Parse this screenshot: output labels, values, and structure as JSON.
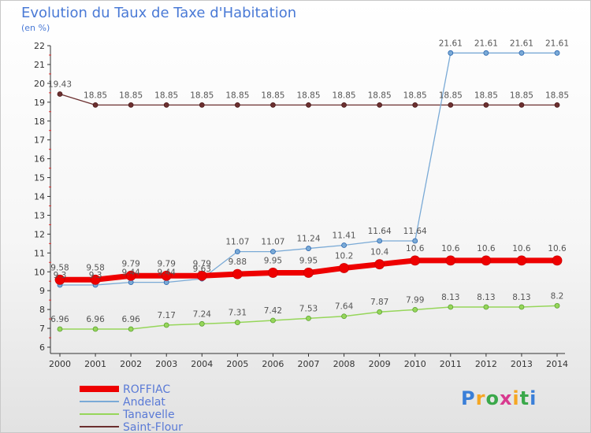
{
  "header": {
    "title": "Evolution du Taux de Taxe d'Habitation",
    "unit": "(en %)"
  },
  "brand": {
    "logo_letters": [
      "P",
      "r",
      "o",
      "x",
      "i",
      "t",
      "i"
    ],
    "logo_colors": [
      "#3a7fd8",
      "#f5a623",
      "#3aa84a",
      "#d83a8f",
      "#f5a623",
      "#3aa84a",
      "#3a7fd8"
    ]
  },
  "chart_data": {
    "type": "line",
    "x": [
      "2000",
      "2001",
      "2002",
      "2003",
      "2004",
      "2005",
      "2006",
      "2007",
      "2008",
      "2009",
      "2010",
      "2011",
      "2012",
      "2013",
      "2014"
    ],
    "ylim": [
      6,
      22
    ],
    "yticks": [
      6,
      7,
      8,
      9,
      10,
      11,
      12,
      13,
      14,
      15,
      16,
      17,
      18,
      19,
      20,
      21,
      22
    ],
    "legend_position": "bottom-left",
    "series": [
      {
        "name": "Saint-Flour",
        "color": "#6b2f2f",
        "line_width": 1.3,
        "point_radius": 3,
        "values": [
          19.43,
          18.85,
          18.85,
          18.85,
          18.85,
          18.85,
          18.85,
          18.85,
          18.85,
          18.85,
          18.85,
          18.85,
          18.85,
          18.85,
          18.85
        ],
        "labels": [
          "19.43",
          "18.85",
          "18.85",
          "18.85",
          "18.85",
          "18.85",
          "18.85",
          "18.85",
          "18.85",
          "18.85",
          "18.85",
          "18.85",
          "18.85",
          "18.85",
          "18.85"
        ]
      },
      {
        "name": "Tanavelle",
        "color": "#96d65a",
        "line_width": 1.5,
        "point_radius": 3,
        "values": [
          6.96,
          6.96,
          6.96,
          7.17,
          7.24,
          7.31,
          7.42,
          7.53,
          7.64,
          7.87,
          7.99,
          8.13,
          8.13,
          8.13,
          8.2
        ],
        "labels": [
          "6.96",
          "6.96",
          "6.96",
          "7.17",
          "7.24",
          "7.31",
          "7.42",
          "7.53",
          "7.64",
          "7.87",
          "7.99",
          "8.13",
          "8.13",
          "8.13",
          "8.2"
        ]
      },
      {
        "name": "Andelat",
        "color": "#7aaad6",
        "line_width": 1.3,
        "point_radius": 3,
        "values": [
          9.3,
          9.3,
          9.44,
          9.44,
          9.63,
          11.07,
          11.07,
          11.24,
          11.41,
          11.64,
          11.64,
          21.61,
          21.61,
          21.61,
          21.61
        ],
        "labels": [
          "9.3",
          "9.3",
          "9.44",
          "9.44",
          "9.63",
          "11.07",
          "11.07",
          "11.24",
          "11.41",
          "11.64",
          "11.64",
          "21.61",
          "21.61",
          "21.61",
          "21.61"
        ]
      },
      {
        "name": "ROFFIAC",
        "color": "#ee0000",
        "line_width": 7,
        "point_radius": 6,
        "values": [
          9.58,
          9.58,
          9.79,
          9.79,
          9.79,
          9.88,
          9.95,
          9.95,
          10.2,
          10.4,
          10.6,
          10.6,
          10.6,
          10.6,
          10.6
        ],
        "labels": [
          "9.58",
          "9.58",
          "9.79",
          "9.79",
          "9.79",
          "9.88",
          "9.95",
          "9.95",
          "10.2",
          "10.4",
          "10.6",
          "10.6",
          "10.6",
          "10.6",
          "10.6"
        ]
      }
    ],
    "legend_order": [
      "ROFFIAC",
      "Andelat",
      "Tanavelle",
      "Saint-Flour"
    ]
  }
}
